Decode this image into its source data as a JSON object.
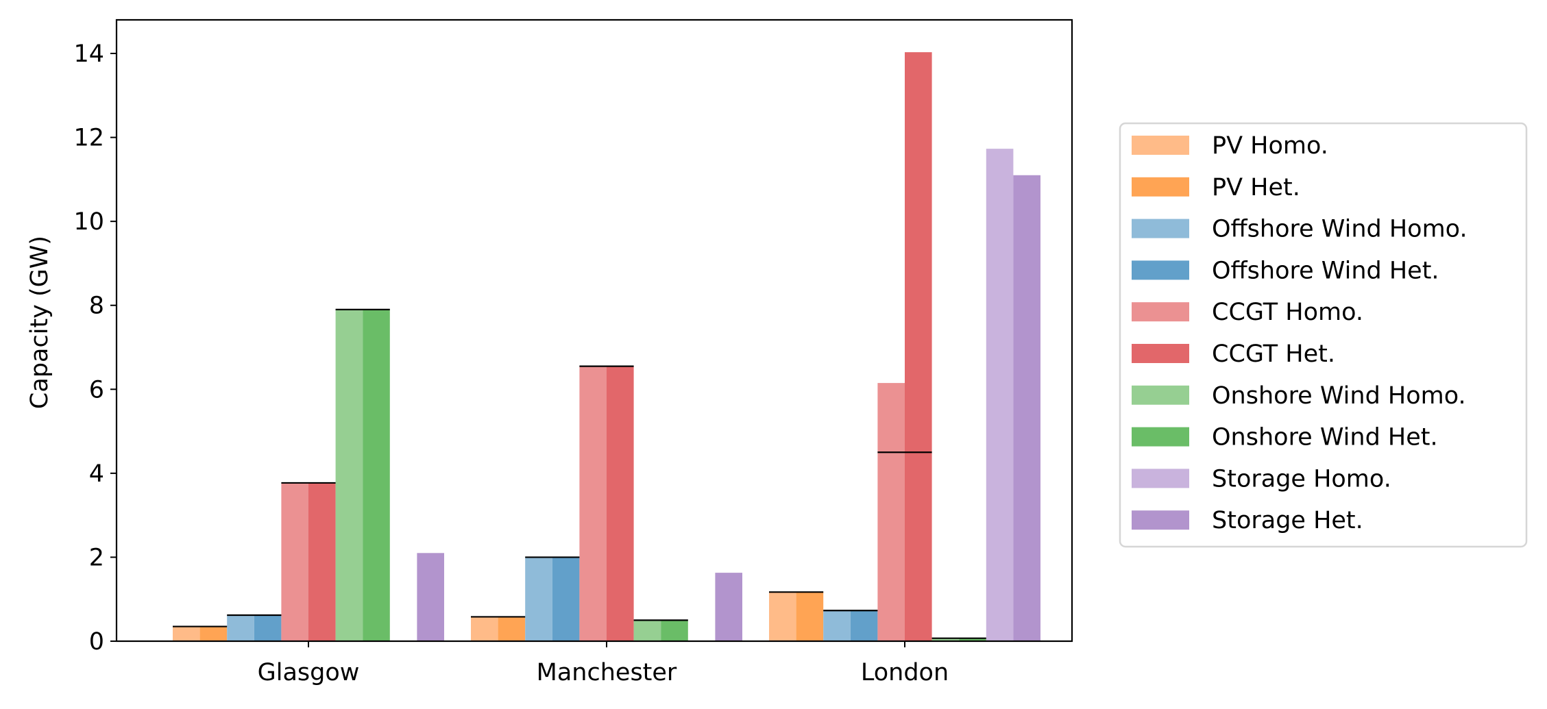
{
  "chart_data": {
    "type": "bar",
    "title": "",
    "xlabel": "",
    "ylabel": "Capacity (GW)",
    "ylim": [
      0,
      14.8
    ],
    "yticks": [
      0,
      2,
      4,
      6,
      8,
      10,
      12,
      14
    ],
    "categories": [
      "Glasgow",
      "Manchester",
      "London"
    ],
    "grid": false,
    "legend_position": "right",
    "series": [
      {
        "name": "PV Homo.",
        "color": "#ffbb88",
        "values": [
          0.35,
          0.58,
          1.17
        ],
        "line_values": [
          0.35,
          0.58,
          1.17
        ]
      },
      {
        "name": "PV Het.",
        "color": "#ffa454",
        "values": [
          0.35,
          0.58,
          1.17
        ],
        "line_values": [
          0.35,
          0.58,
          1.17
        ]
      },
      {
        "name": "Offshore Wind Homo.",
        "color": "#8fbbd9",
        "values": [
          0.62,
          2.0,
          0.73
        ],
        "line_values": [
          0.62,
          2.0,
          0.73
        ]
      },
      {
        "name": "Offshore Wind Het.",
        "color": "#62a0ca",
        "values": [
          0.62,
          2.0,
          0.73
        ],
        "line_values": [
          0.62,
          2.0,
          0.73
        ]
      },
      {
        "name": "CCGT Homo.",
        "color": "#eb9192",
        "values": [
          3.77,
          6.55,
          6.15
        ],
        "line_values": [
          3.77,
          6.55,
          4.5
        ]
      },
      {
        "name": "CCGT Het.",
        "color": "#e2676a",
        "values": [
          3.77,
          6.55,
          14.03
        ],
        "line_values": [
          3.77,
          6.55,
          4.5
        ]
      },
      {
        "name": "Onshore Wind Homo.",
        "color": "#96cf92",
        "values": [
          7.9,
          0.5,
          0.07
        ],
        "line_values": [
          7.9,
          0.5,
          0.07
        ]
      },
      {
        "name": "Onshore Wind Het.",
        "color": "#6abd67",
        "values": [
          7.9,
          0.5,
          0.07
        ],
        "line_values": [
          7.9,
          0.5,
          0.07
        ]
      },
      {
        "name": "Storage Homo.",
        "color": "#c9b3dd",
        "values": [
          0,
          0,
          11.73
        ],
        "line_values": [
          null,
          null,
          null
        ]
      },
      {
        "name": "Storage Het.",
        "color": "#b294cd",
        "values": [
          2.1,
          1.63,
          11.1
        ],
        "line_values": [
          null,
          null,
          null
        ]
      }
    ]
  }
}
